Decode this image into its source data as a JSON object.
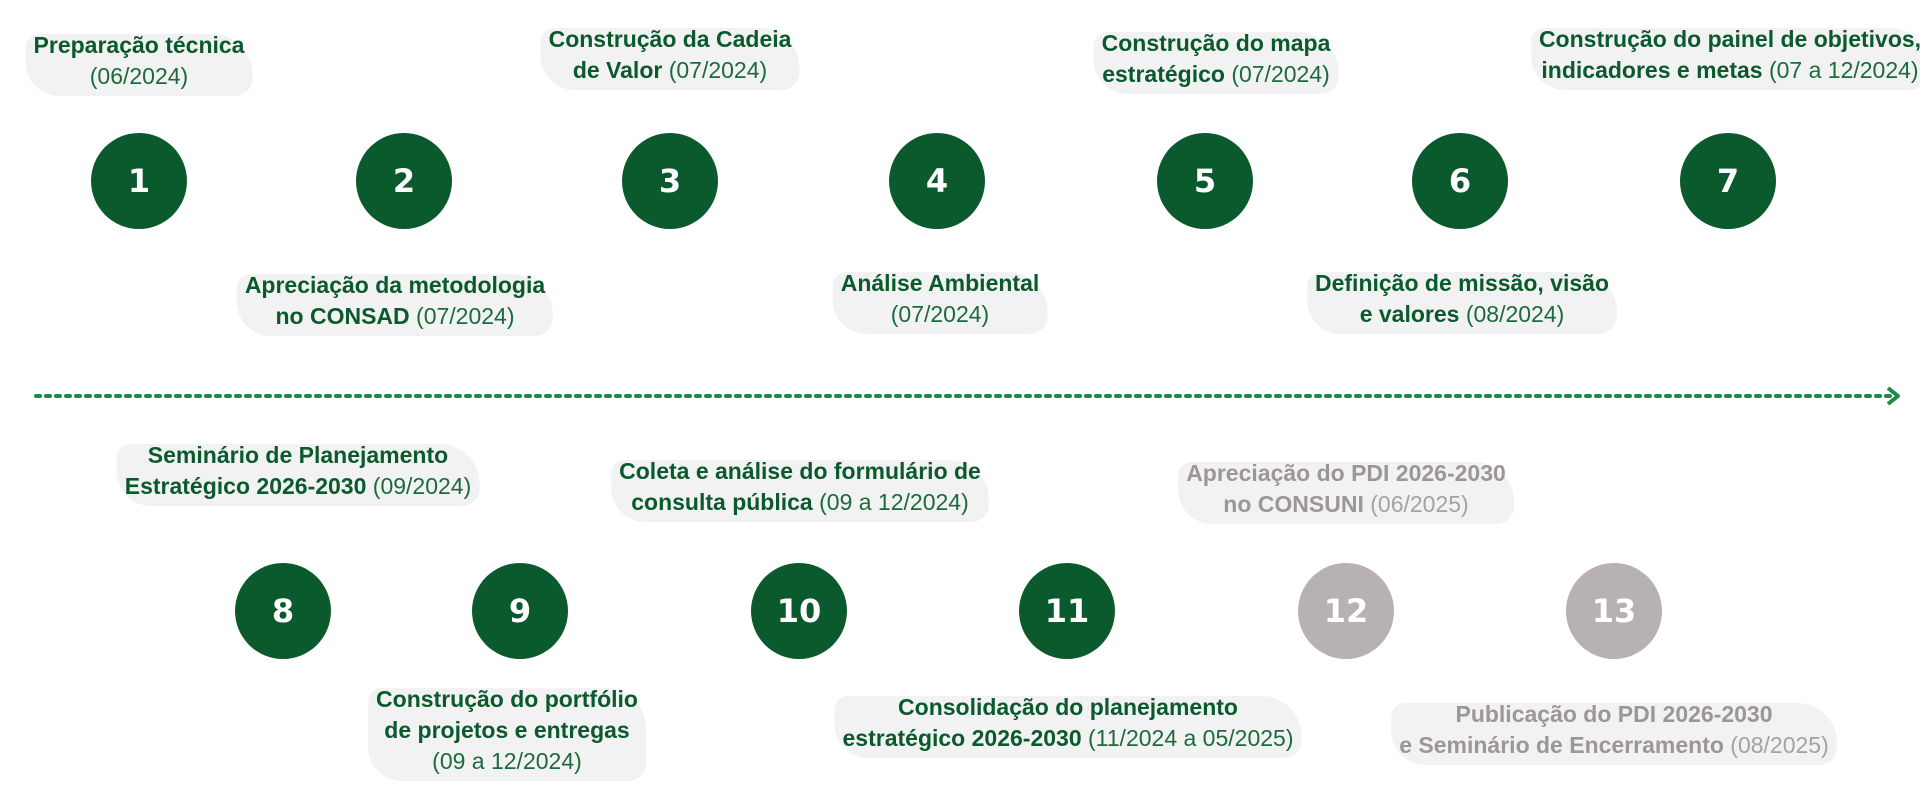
{
  "colors": {
    "done": "#0b5a2e",
    "pending": "#b8b1b1",
    "axis": "#1e8a4a"
  },
  "steps": [
    {
      "number": "1",
      "status": "done",
      "title_lines": [
        "Preparação técnica",
        ""
      ],
      "date": "(06/2024)"
    },
    {
      "number": "2",
      "status": "done",
      "title_lines": [
        "Apreciação da metodologia",
        "no CONSAD "
      ],
      "date": " (07/2024)"
    },
    {
      "number": "3",
      "status": "done",
      "title_lines": [
        "Construção da Cadeia",
        "de Valor"
      ],
      "date": " (07/2024)"
    },
    {
      "number": "4",
      "status": "done",
      "title_lines": [
        "Análise Ambiental",
        ""
      ],
      "date": "(07/2024)"
    },
    {
      "number": "5",
      "status": "done",
      "title_lines": [
        "Construção do mapa",
        "estratégico"
      ],
      "date": " (07/2024)"
    },
    {
      "number": "6",
      "status": "done",
      "title_lines": [
        "Definição de missão, visão",
        "e valores"
      ],
      "date": " (08/2024)"
    },
    {
      "number": "7",
      "status": "done",
      "title_lines": [
        "Construção  do painel de objetivos,",
        "indicadores e metas"
      ],
      "date": " (07 a 12/2024)"
    },
    {
      "number": "8",
      "status": "done",
      "title_lines": [
        "Seminário de Planejamento",
        "Estratégico 2026-2030"
      ],
      "date": " (09/2024)"
    },
    {
      "number": "9",
      "status": "done",
      "title_lines": [
        "Construção  do portfólio",
        "de projetos e entregas"
      ],
      "date": "(09 a 12/2024)"
    },
    {
      "number": "10",
      "status": "done",
      "title_lines": [
        "Coleta e análise do formulário de",
        "consulta pública"
      ],
      "date": " (09 a 12/2024)"
    },
    {
      "number": "11",
      "status": "done",
      "title_lines": [
        "Consolidação do planejamento",
        "estratégico 2026-2030"
      ],
      "date": " (11/2024 a 05/2025)"
    },
    {
      "number": "12",
      "status": "pending",
      "title_lines": [
        "Apreciação do PDI 2026-2030",
        "no CONSUNI"
      ],
      "date": " (06/2025)"
    },
    {
      "number": "13",
      "status": "pending",
      "title_lines": [
        "Publicação do PDI 2026-2030",
        "e Seminário de Encerramento"
      ],
      "date": " (08/2025)"
    }
  ]
}
